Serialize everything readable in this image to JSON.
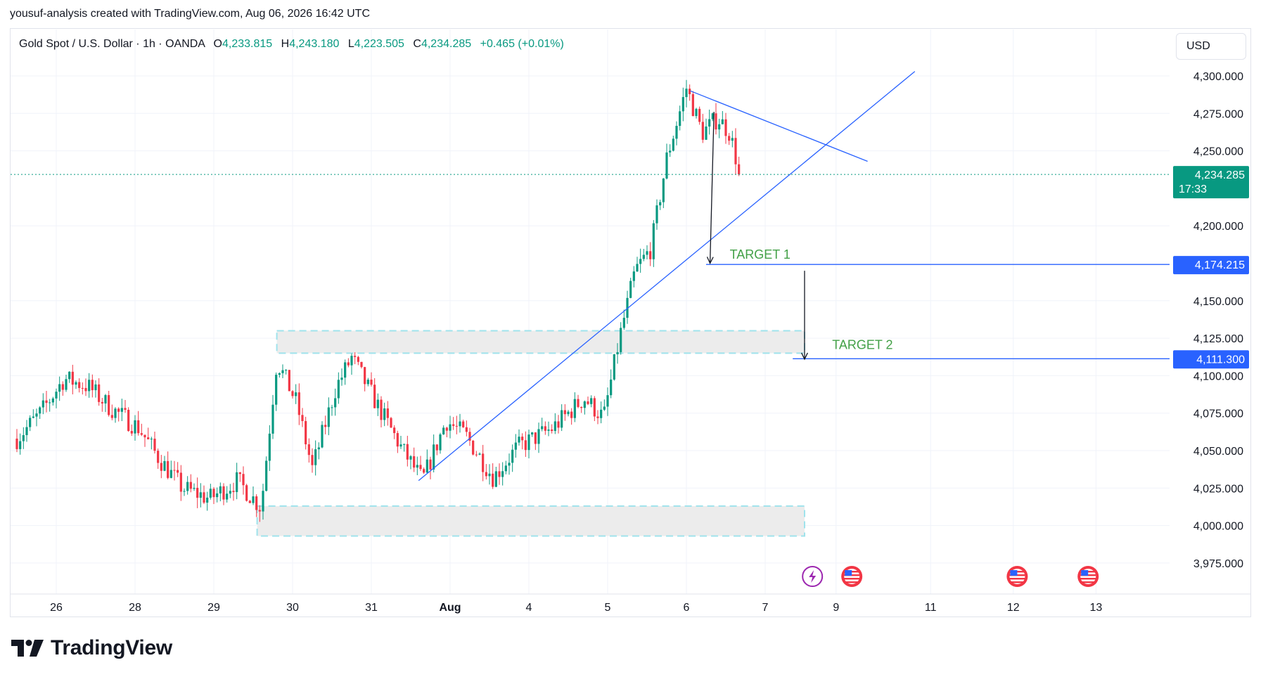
{
  "header": {
    "caption": "yousuf-analysis created with TradingView.com, Aug 06, 2026 16:42 UTC"
  },
  "legend": {
    "symbol": "Gold Spot / U.S. Dollar · 1h · OANDA",
    "open_label": "O",
    "open": "4,233.815",
    "high_label": "H",
    "high": "4,243.180",
    "low_label": "L",
    "low": "4,223.505",
    "close_label": "C",
    "close": "4,234.285",
    "change": "+0.465 (+0.01%)"
  },
  "currency_button": {
    "label": "USD"
  },
  "price_badges": {
    "last_price": "4,234.285",
    "countdown": "17:33",
    "target1_price": "4,174.215",
    "target2_price": "4,111.300"
  },
  "annotations": {
    "target1": "TARGET 1",
    "target2": "TARGET 2"
  },
  "brand": {
    "name": "TradingView"
  },
  "colors": {
    "up": "#089981",
    "down": "#f23645",
    "trendline": "#2962ff",
    "target_text": "#43a047",
    "zone_fill": "#ececec",
    "zone_border": "#9fe3ec",
    "badge_blue": "#2962ff",
    "badge_green": "#089981"
  },
  "chart_data": {
    "type": "candlestick",
    "title": "Gold Spot / U.S. Dollar · 1h · OANDA",
    "y_range": [
      3950,
      4320
    ],
    "y_ticks": [
      "4,300.000",
      "4,275.000",
      "4,250.000",
      "4,200.000",
      "4,150.000",
      "4,125.000",
      "4,100.000",
      "4,075.000",
      "4,050.000",
      "4,025.000",
      "4,000.000",
      "3,975.000"
    ],
    "y_tick_values": [
      4300,
      4275,
      4250,
      4200,
      4150,
      4125,
      4100,
      4075,
      4050,
      4025,
      4000,
      3975
    ],
    "x_ticks": [
      {
        "label": "26",
        "day": 0
      },
      {
        "label": "28",
        "day": 1
      },
      {
        "label": "29",
        "day": 2
      },
      {
        "label": "30",
        "day": 3
      },
      {
        "label": "31",
        "day": 4
      },
      {
        "label": "Aug",
        "day": 5
      },
      {
        "label": "4",
        "day": 6
      },
      {
        "label": "5",
        "day": 7
      },
      {
        "label": "6",
        "day": 8
      },
      {
        "label": "7",
        "day": 9
      },
      {
        "label": "9",
        "day": 9.9
      },
      {
        "label": "11",
        "day": 11.1
      },
      {
        "label": "12",
        "day": 12.15
      },
      {
        "label": "13",
        "day": 13.2
      }
    ],
    "last_price": 4234.285,
    "targets": [
      {
        "name": "TARGET 1",
        "price": 4174.215
      },
      {
        "name": "TARGET 2",
        "price": 4111.3
      }
    ],
    "zones": [
      {
        "from_day": 2.8,
        "to_day": 9.5,
        "low": 4115,
        "high": 4130
      },
      {
        "from_day": 2.55,
        "to_day": 9.5,
        "low": 3993,
        "high": 4013
      }
    ],
    "trendlines": [
      {
        "from": [
          4.6,
          4030
        ],
        "to": [
          10.9,
          4303
        ]
      },
      {
        "from": [
          8.05,
          4290
        ],
        "to": [
          10.3,
          4243
        ]
      }
    ],
    "arrows": [
      {
        "from": [
          8.35,
          4276
        ],
        "to": [
          8.3,
          4175
        ]
      },
      {
        "from": [
          9.5,
          4170
        ],
        "to": [
          9.5,
          4111
        ]
      }
    ],
    "event_markers": [
      {
        "kind": "lightning",
        "day": 9.6
      },
      {
        "kind": "us-flag",
        "day": 10.1
      },
      {
        "kind": "us-flag",
        "day": 12.2
      },
      {
        "kind": "us-flag",
        "day": 13.1
      }
    ],
    "key_points": [
      {
        "day": -0.5,
        "price": 4058
      },
      {
        "day": -0.2,
        "price": 4075
      },
      {
        "day": 0.1,
        "price": 4098
      },
      {
        "day": 0.4,
        "price": 4093
      },
      {
        "day": 0.7,
        "price": 4078
      },
      {
        "day": 1.05,
        "price": 4065
      },
      {
        "day": 1.3,
        "price": 4045
      },
      {
        "day": 1.6,
        "price": 4025
      },
      {
        "day": 1.95,
        "price": 4018
      },
      {
        "day": 2.3,
        "price": 4030
      },
      {
        "day": 2.6,
        "price": 4012
      },
      {
        "day": 2.8,
        "price": 4110
      },
      {
        "day": 3.05,
        "price": 4082
      },
      {
        "day": 3.25,
        "price": 4038
      },
      {
        "day": 3.55,
        "price": 4092
      },
      {
        "day": 3.75,
        "price": 4112
      },
      {
        "day": 4.1,
        "price": 4078
      },
      {
        "day": 4.4,
        "price": 4050
      },
      {
        "day": 4.65,
        "price": 4030
      },
      {
        "day": 4.95,
        "price": 4070
      },
      {
        "day": 5.2,
        "price": 4060
      },
      {
        "day": 5.55,
        "price": 4032
      },
      {
        "day": 5.85,
        "price": 4052
      },
      {
        "day": 6.3,
        "price": 4065
      },
      {
        "day": 6.7,
        "price": 4085
      },
      {
        "day": 6.95,
        "price": 4072
      },
      {
        "day": 7.15,
        "price": 4125
      },
      {
        "day": 7.35,
        "price": 4170
      },
      {
        "day": 7.55,
        "price": 4185
      },
      {
        "day": 7.75,
        "price": 4245
      },
      {
        "day": 8.0,
        "price": 4292
      },
      {
        "day": 8.2,
        "price": 4262
      },
      {
        "day": 8.4,
        "price": 4272
      },
      {
        "day": 8.55,
        "price": 4262
      },
      {
        "day": 8.68,
        "price": 4234
      }
    ]
  }
}
